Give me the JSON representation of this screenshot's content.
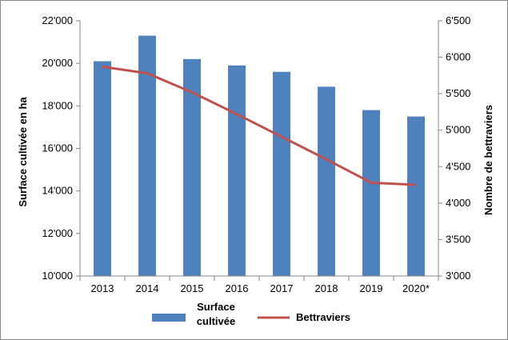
{
  "chart_data": {
    "type": "bar",
    "categories": [
      "2013",
      "2014",
      "2015",
      "2016",
      "2017",
      "2018",
      "2019",
      "2020*"
    ],
    "series": [
      {
        "name": "Surface cultivée",
        "kind": "bar",
        "axis": "left",
        "color": "#4F81BD",
        "values": [
          20100,
          21300,
          20200,
          19900,
          19600,
          18900,
          17800,
          17500
        ]
      },
      {
        "name": "Bettraviers",
        "kind": "line",
        "axis": "right",
        "color": "#C0504D",
        "values": [
          5870,
          5780,
          5520,
          5220,
          4910,
          4600,
          4280,
          4250
        ]
      }
    ],
    "y_left": {
      "label": "Surface cultivée en ha",
      "ylim": [
        10000,
        22000
      ],
      "ticks": [
        "10'000",
        "12'000",
        "14'000",
        "16'000",
        "18'000",
        "20'000",
        "22'000"
      ]
    },
    "y_right": {
      "label": "Nombre de bettraviers",
      "ylim": [
        3000,
        6500
      ],
      "ticks": [
        "3'000",
        "3'500",
        "4'000",
        "4'500",
        "5'000",
        "5'500",
        "6'000",
        "6'500"
      ]
    },
    "legend": {
      "position": "bottom",
      "bar_label_line1": "Surface",
      "bar_label_line2": "cultivée",
      "line_label": "Bettraviers"
    },
    "grid": false
  }
}
